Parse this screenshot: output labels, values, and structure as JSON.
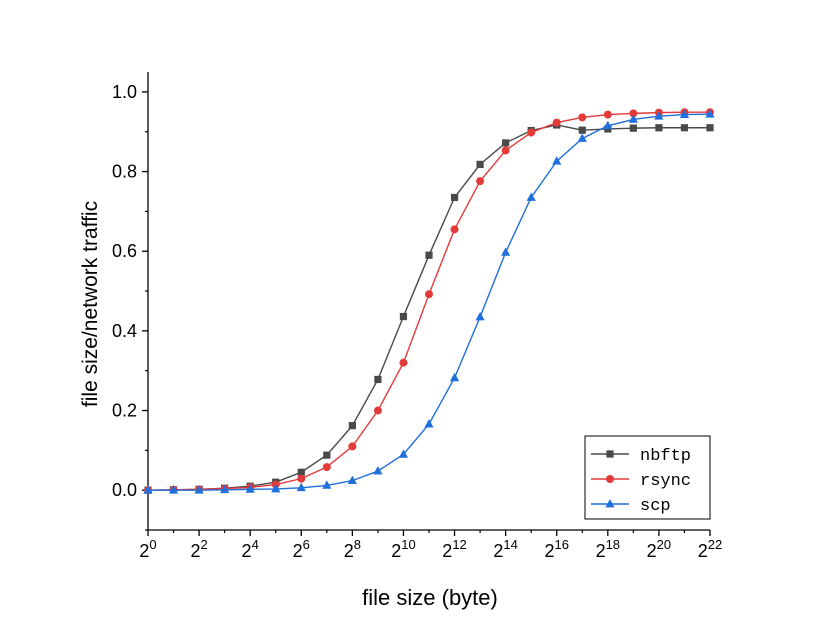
{
  "chart_data": {
    "type": "line",
    "xlabel": "file size (byte)",
    "ylabel": "file size/network traffic",
    "x_scale": "log2",
    "x": [
      1,
      2,
      4,
      8,
      16,
      32,
      64,
      128,
      256,
      512,
      1024,
      2048,
      4096,
      8192,
      16384,
      32768,
      65536,
      131072,
      262144,
      524288,
      1048576,
      2097152,
      4194304
    ],
    "x_ticks": [
      1,
      4,
      16,
      64,
      256,
      1024,
      4096,
      16384,
      65536,
      262144,
      1048576,
      4194304
    ],
    "x_tick_labels": [
      {
        "base": "2",
        "exp": "0"
      },
      {
        "base": "2",
        "exp": "2"
      },
      {
        "base": "2",
        "exp": "4"
      },
      {
        "base": "2",
        "exp": "6"
      },
      {
        "base": "2",
        "exp": "8"
      },
      {
        "base": "2",
        "exp": "10"
      },
      {
        "base": "2",
        "exp": "12"
      },
      {
        "base": "2",
        "exp": "14"
      },
      {
        "base": "2",
        "exp": "16"
      },
      {
        "base": "2",
        "exp": "18"
      },
      {
        "base": "2",
        "exp": "20"
      },
      {
        "base": "2",
        "exp": "22"
      }
    ],
    "xlim": [
      1,
      4194304
    ],
    "ylim": [
      -0.1,
      1.05
    ],
    "y_ticks": [
      0.0,
      0.2,
      0.4,
      0.6,
      0.8,
      1.0
    ],
    "y_tick_labels": [
      "0.0",
      "0.2",
      "0.4",
      "0.6",
      "0.8",
      "1.0"
    ],
    "grid": false,
    "legend_position": "bottom-right",
    "series": [
      {
        "name": "nbftp",
        "color": "#4a4a4a",
        "marker": "square",
        "values": [
          0.0,
          0.001,
          0.002,
          0.005,
          0.01,
          0.02,
          0.045,
          0.088,
          0.162,
          0.278,
          0.436,
          0.59,
          0.735,
          0.818,
          0.872,
          0.903,
          0.917,
          0.904,
          0.907,
          0.909,
          0.91,
          0.91,
          0.91
        ]
      },
      {
        "name": "rsync",
        "color": "#e53a3a",
        "marker": "circle",
        "values": [
          0.0,
          0.001,
          0.002,
          0.004,
          0.007,
          0.014,
          0.029,
          0.058,
          0.11,
          0.2,
          0.32,
          0.492,
          0.655,
          0.776,
          0.853,
          0.898,
          0.923,
          0.936,
          0.943,
          0.946,
          0.948,
          0.949,
          0.949
        ]
      },
      {
        "name": "scp",
        "color": "#1f6fdc",
        "marker": "triangle",
        "values": [
          0.0,
          0.0,
          0.0,
          0.001,
          0.002,
          0.003,
          0.006,
          0.012,
          0.024,
          0.048,
          0.09,
          0.166,
          0.282,
          0.435,
          0.597,
          0.735,
          0.826,
          0.883,
          0.915,
          0.931,
          0.939,
          0.943,
          0.944
        ]
      }
    ]
  }
}
